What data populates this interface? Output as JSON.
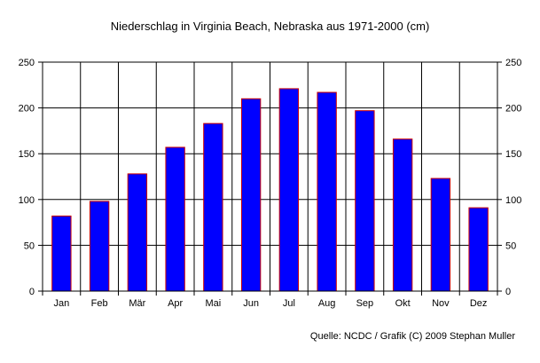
{
  "chart_data": {
    "type": "bar",
    "title": "Niederschlag in Virginia Beach, Nebraska aus 1971-2000 (cm)",
    "categories": [
      "Jan",
      "Feb",
      "Mär",
      "Apr",
      "Mai",
      "Jun",
      "Jul",
      "Aug",
      "Sep",
      "Okt",
      "Nov",
      "Dez"
    ],
    "values": [
      82,
      98,
      128,
      157,
      183,
      210,
      221,
      217,
      197,
      166,
      123,
      91
    ],
    "ylim": [
      0,
      250
    ],
    "yticks": [
      "0",
      "50",
      "100",
      "150",
      "200",
      "250"
    ],
    "grid": true,
    "right_axis": true,
    "bar_fill": "#0000ff",
    "bar_stroke": "#cc0000",
    "source": "Quelle: NCDC / Grafik (C) 2009 Stephan Muller"
  }
}
